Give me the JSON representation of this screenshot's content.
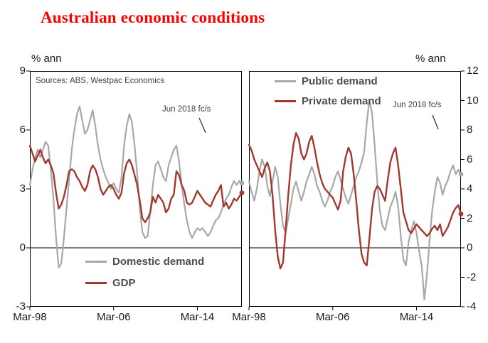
{
  "title": "Australian economic conditions",
  "axis_units": {
    "left": "% ann",
    "right": "% ann"
  },
  "source_note": "Sources: ABS, Westpac Economics",
  "colors": {
    "title": "#ff0000",
    "gray_series": "#a8a8a8",
    "red_series": "#a43830",
    "axis": "#000000",
    "legend_text": "#4d4d4d"
  },
  "chart_data": [
    {
      "type": "line",
      "panel": "left",
      "axis_side": "left",
      "ylabel": "% ann",
      "ylim": [
        -3,
        9
      ],
      "yticks": [
        9,
        6,
        3,
        0,
        -3
      ],
      "x_frequency": "quarterly",
      "x_start": "Mar-98",
      "x_end": "Jun-2018 forecast",
      "x_tick_labels": [
        "Mar-98",
        "Mar-06",
        "Mar-14"
      ],
      "x_tick_indices": [
        0,
        32,
        64
      ],
      "annotation": "Jun 2018 fc/s",
      "source": "Sources: ABS, Westpac Economics",
      "legend": [
        "Domestic demand",
        "GDP"
      ],
      "series": [
        {
          "name": "Domestic demand",
          "color_key": "gray_series",
          "values": [
            3.2,
            4.0,
            4.6,
            5.0,
            4.6,
            5.0,
            5.4,
            5.2,
            4.0,
            2.5,
            0.5,
            -1.0,
            -0.8,
            0.5,
            2.0,
            3.5,
            5.0,
            6.0,
            6.8,
            7.2,
            6.5,
            5.8,
            6.0,
            6.5,
            7.0,
            6.2,
            5.2,
            4.5,
            4.0,
            3.6,
            3.3,
            3.0,
            3.3,
            3.0,
            2.8,
            3.6,
            5.2,
            6.2,
            6.8,
            6.4,
            5.2,
            3.8,
            2.0,
            0.8,
            0.5,
            0.6,
            1.8,
            3.2,
            4.2,
            4.4,
            4.0,
            3.6,
            3.4,
            4.2,
            4.6,
            5.0,
            5.2,
            4.4,
            3.2,
            2.2,
            1.4,
            0.8,
            0.5,
            0.8,
            1.0,
            0.9,
            1.0,
            0.8,
            0.6,
            0.8,
            1.1,
            1.4,
            1.5,
            1.8,
            2.2,
            2.5,
            2.7,
            3.1,
            3.4,
            3.2,
            3.4,
            3.3
          ]
        },
        {
          "name": "GDP",
          "color_key": "red_series",
          "values": [
            5.2,
            4.8,
            4.4,
            4.7,
            5.0,
            4.6,
            4.3,
            4.5,
            4.2,
            3.8,
            2.8,
            2.0,
            2.2,
            2.6,
            3.2,
            3.9,
            4.0,
            3.9,
            3.6,
            3.4,
            3.1,
            2.9,
            3.2,
            3.9,
            4.2,
            4.0,
            3.6,
            3.0,
            2.7,
            2.9,
            3.1,
            3.2,
            3.0,
            2.7,
            2.5,
            2.8,
            3.8,
            4.3,
            4.5,
            4.2,
            3.7,
            3.2,
            2.4,
            1.5,
            1.3,
            1.5,
            1.8,
            2.6,
            2.3,
            2.7,
            2.5,
            2.3,
            1.8,
            2.0,
            2.5,
            2.7,
            3.9,
            3.7,
            3.2,
            2.9,
            2.3,
            2.2,
            2.3,
            2.6,
            2.9,
            2.7,
            2.5,
            2.3,
            2.2,
            2.1,
            2.4,
            2.7,
            2.9,
            3.2,
            2.1,
            2.3,
            2.0,
            2.2,
            2.5,
            2.4,
            2.6,
            2.8
          ]
        }
      ]
    },
    {
      "type": "line",
      "panel": "right",
      "axis_side": "right",
      "ylabel": "% ann",
      "ylim": [
        -4,
        12
      ],
      "yticks": [
        12,
        10,
        8,
        6,
        4,
        2,
        0,
        -2,
        -4
      ],
      "x_frequency": "quarterly",
      "x_start": "Mar-98",
      "x_end": "Jun-2018 forecast",
      "x_tick_labels": [
        "Mar-98",
        "Mar-06",
        "Mar-14"
      ],
      "x_tick_indices": [
        0,
        32,
        64
      ],
      "annotation": "Jun 2018 fc/s",
      "legend": [
        "Public demand",
        "Private demand"
      ],
      "series": [
        {
          "name": "Public demand",
          "color_key": "gray_series",
          "values": [
            4.5,
            3.8,
            3.2,
            4.0,
            5.2,
            6.0,
            5.5,
            4.2,
            3.5,
            4.5,
            5.5,
            4.8,
            3.0,
            1.5,
            1.0,
            2.0,
            3.0,
            4.0,
            4.5,
            3.8,
            3.2,
            3.8,
            4.5,
            5.0,
            5.5,
            5.0,
            4.2,
            3.8,
            3.2,
            2.8,
            3.2,
            3.8,
            4.2,
            4.8,
            5.2,
            4.6,
            4.0,
            3.4,
            3.0,
            3.6,
            4.2,
            4.8,
            5.2,
            5.8,
            6.5,
            8.5,
            10.0,
            9.2,
            7.0,
            4.5,
            2.5,
            1.5,
            1.2,
            2.0,
            2.8,
            3.2,
            3.8,
            2.8,
            0.8,
            -0.8,
            -1.2,
            0.4,
            1.2,
            1.8,
            1.0,
            -0.2,
            -1.2,
            -3.5,
            -1.8,
            0.5,
            2.5,
            3.8,
            4.8,
            4.4,
            3.6,
            4.2,
            4.6,
            5.2,
            5.6,
            5.0,
            5.3,
            5.0
          ]
        },
        {
          "name": "Private demand",
          "color_key": "red_series",
          "values": [
            7.0,
            6.6,
            6.0,
            5.6,
            5.2,
            4.8,
            5.4,
            5.8,
            5.2,
            3.6,
            1.2,
            -0.6,
            -1.4,
            -1.0,
            1.2,
            3.6,
            5.6,
            7.0,
            7.8,
            7.4,
            6.4,
            6.0,
            6.4,
            7.2,
            7.6,
            6.8,
            5.8,
            5.0,
            4.4,
            4.0,
            3.8,
            3.6,
            3.4,
            3.0,
            2.6,
            3.2,
            5.2,
            6.2,
            6.8,
            6.4,
            5.0,
            3.2,
            1.2,
            -0.4,
            -1.0,
            -1.2,
            0.6,
            2.6,
            3.8,
            4.2,
            4.0,
            3.6,
            3.2,
            4.6,
            5.8,
            6.4,
            6.8,
            5.6,
            4.0,
            2.4,
            1.8,
            1.2,
            1.0,
            1.3,
            1.6,
            1.4,
            1.2,
            1.0,
            0.8,
            1.0,
            1.3,
            1.5,
            1.2,
            1.6,
            0.8,
            1.1,
            1.4,
            1.9,
            2.4,
            2.7,
            2.9,
            2.3
          ]
        }
      ]
    }
  ]
}
